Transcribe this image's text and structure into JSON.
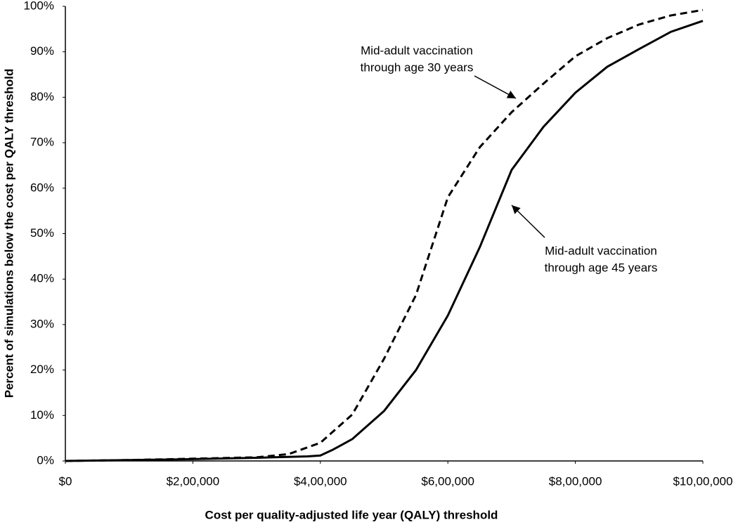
{
  "chart_data": {
    "type": "line",
    "x_label": "Cost per quality-adjusted life year (QALY) threshold",
    "y_label": "Percent of simulations below the cost per QALY threshold",
    "xlim": [
      0,
      1000000
    ],
    "xticks": [
      {
        "value": 0,
        "label": "$0"
      },
      {
        "value": 200000,
        "label": "$2,00,000"
      },
      {
        "value": 400000,
        "label": "$4,00,000"
      },
      {
        "value": 600000,
        "label": "$6,00,000"
      },
      {
        "value": 800000,
        "label": "$8,00,000"
      },
      {
        "value": 1000000,
        "label": "$10,00,000"
      }
    ],
    "ylim": [
      0,
      100
    ],
    "yticks": [
      {
        "value": 0,
        "label": "0%"
      },
      {
        "value": 10,
        "label": "10%"
      },
      {
        "value": 20,
        "label": "20%"
      },
      {
        "value": 30,
        "label": "30%"
      },
      {
        "value": 40,
        "label": "40%"
      },
      {
        "value": 50,
        "label": "50%"
      },
      {
        "value": 60,
        "label": "60%"
      },
      {
        "value": 70,
        "label": "70%"
      },
      {
        "value": 80,
        "label": "80%"
      },
      {
        "value": 90,
        "label": "90%"
      },
      {
        "value": 100,
        "label": "100%"
      }
    ],
    "series": [
      {
        "color": "#000000",
        "dashed": true,
        "x": [
          0,
          100000,
          200000,
          300000,
          350000,
          400000,
          450000,
          500000,
          550000,
          600000,
          650000,
          700000,
          750000,
          800000,
          850000,
          900000,
          950000,
          1000000
        ],
        "values": [
          0,
          0.2,
          0.5,
          0.8,
          1.5,
          4,
          10.2,
          22.5,
          36.5,
          58,
          69,
          76.7,
          83,
          89,
          93,
          96,
          98,
          99.2
        ]
      },
      {
        "color": "#000000",
        "dashed": false,
        "x": [
          0,
          200000,
          300000,
          380000,
          400000,
          420000,
          450000,
          500000,
          550000,
          600000,
          650000,
          700000,
          750000,
          800000,
          850000,
          900000,
          950000,
          1000000
        ],
        "values": [
          0,
          0.4,
          0.7,
          1,
          1.2,
          2.5,
          4.8,
          11,
          20,
          32,
          47,
          64,
          73.5,
          81,
          86.7,
          90.6,
          94.4,
          96.8
        ]
      }
    ],
    "annotations": [
      {
        "lines": [
          "Mid-adult vaccination",
          "through age 30 years"
        ]
      },
      {
        "lines": [
          "Mid-adult vaccination",
          "through age 45 years"
        ]
      }
    ]
  }
}
